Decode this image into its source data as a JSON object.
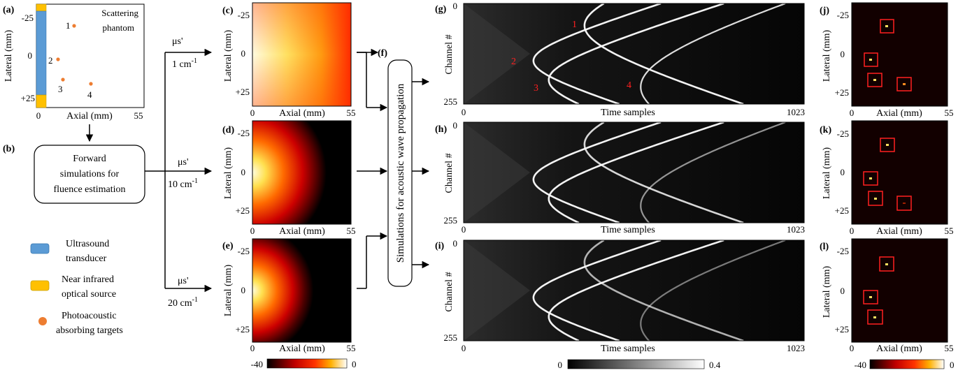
{
  "panel_a": {
    "label": "(a)",
    "title_line1": "Scattering",
    "title_line2": "phantom",
    "xlabel": "Axial (mm)",
    "ylabel": "Lateral (mm)",
    "x_ticks": [
      "0",
      "55"
    ],
    "y_ticks": [
      "-25",
      "0",
      "+25"
    ],
    "targets": [
      "1",
      "2",
      "3",
      "4"
    ]
  },
  "panel_b": {
    "label": "(b)",
    "box_line1": "Forward",
    "box_line2": "simulations for",
    "box_line3": "fluence estimation"
  },
  "legend": {
    "transducer_line1": "Ultrasound",
    "transducer_line2": "transducer",
    "source_line1": "Near infrared",
    "source_line2": "optical source",
    "targets_line1": "Photoacoustic",
    "targets_line2": "absorbing targets",
    "colors": {
      "transducer": "#5b9bd5",
      "source": "#ffc000",
      "target": "#ed7d31"
    }
  },
  "scattering": [
    {
      "mu": "μs'",
      "value": "1 cm",
      "exp": "-1"
    },
    {
      "mu": "μs'",
      "value": "10 cm",
      "exp": "-1"
    },
    {
      "mu": "μs'",
      "value": "20 cm",
      "exp": "-1"
    }
  ],
  "fluence_panels": {
    "labels": [
      "(c)",
      "(d)",
      "(e)"
    ],
    "xlabel": "Axial (mm)",
    "ylabel": "Lateral (mm)",
    "x_ticks": [
      "0",
      "55"
    ],
    "y_ticks": [
      "-25",
      "0",
      "+25"
    ],
    "colorbar": [
      "-40",
      "0"
    ]
  },
  "panel_f": {
    "label": "(f)",
    "box_text": "Simulations for acoustic wave propagation"
  },
  "signal_panels": {
    "labels": [
      "(g)",
      "(h)",
      "(i)"
    ],
    "xlabel": "Time samples",
    "ylabel": "Channel #",
    "x_ticks": [
      "0",
      "1023"
    ],
    "y_ticks": [
      "0",
      "255"
    ],
    "annotations": [
      "1",
      "2",
      "3",
      "4"
    ],
    "colorbar": [
      "0",
      "0.4"
    ]
  },
  "recon_panels": {
    "labels": [
      "(j)",
      "(k)",
      "(l)"
    ],
    "xlabel": "Axial (mm)",
    "ylabel": "Lateral (mm)",
    "x_ticks": [
      "0",
      "55"
    ],
    "y_ticks": [
      "-25",
      "0",
      "+25"
    ],
    "colorbar": [
      "-40",
      "0"
    ]
  }
}
